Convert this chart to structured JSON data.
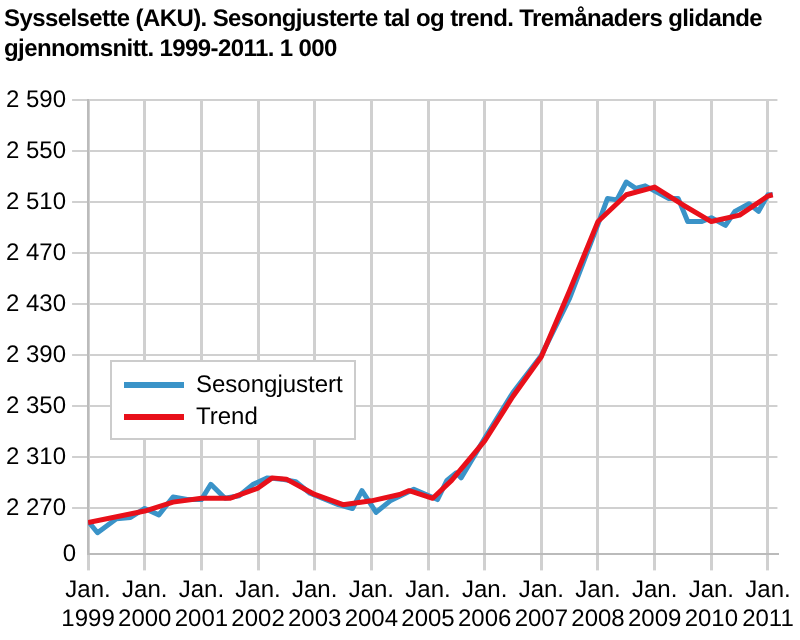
{
  "chart_data": {
    "type": "line",
    "title": "Sysselsette (AKU).  Sesongjusterte tal og trend. Tremånaders glidande gjennomsnitt. 1999-2011. 1 000",
    "series": [
      {
        "name": "Sesongjustert",
        "color": "#3a93c8",
        "x": [
          "1999-01",
          "1999-03",
          "1999-07",
          "1999-10",
          "2000-01",
          "2000-04",
          "2000-07",
          "2000-10",
          "2001-01",
          "2001-03",
          "2001-06",
          "2001-09",
          "2001-12",
          "2002-03",
          "2002-06",
          "2002-09",
          "2002-12",
          "2003-06",
          "2003-09",
          "2003-11",
          "2004-02",
          "2004-05",
          "2004-10",
          "2005-03",
          "2005-05",
          "2005-07",
          "2005-08",
          "2006-01",
          "2006-07",
          "2007-01",
          "2007-07",
          "2008-01",
          "2008-03",
          "2008-05",
          "2008-07",
          "2008-09",
          "2008-11",
          "2009-04",
          "2009-06",
          "2009-08",
          "2009-11",
          "2010-01",
          "2010-04",
          "2010-06",
          "2010-09",
          "2010-11",
          "2011-01",
          "2011-02"
        ],
        "values": [
          2260,
          2251,
          2262,
          2263,
          2270,
          2265,
          2279,
          2277,
          2277,
          2289,
          2278,
          2280,
          2289,
          2294,
          2293,
          2291,
          2282,
          2273,
          2270,
          2284,
          2267,
          2276,
          2285,
          2277,
          2292,
          2298,
          2294,
          2325,
          2361,
          2390,
          2435,
          2493,
          2513,
          2512,
          2526,
          2521,
          2523,
          2513,
          2513,
          2495,
          2495,
          2498,
          2492,
          2503,
          2509,
          2503,
          2516,
          2516
        ]
      },
      {
        "name": "Trend",
        "color": "#e8101a",
        "x": [
          "1999-01",
          "2000-01",
          "2000-07",
          "2001-01",
          "2001-07",
          "2002-01",
          "2002-04",
          "2002-07",
          "2003-01",
          "2003-07",
          "2004-01",
          "2004-07",
          "2004-09",
          "2005-02",
          "2005-06",
          "2006-01",
          "2006-07",
          "2007-01",
          "2007-07",
          "2008-01",
          "2008-07",
          "2009-01",
          "2009-07",
          "2010-01",
          "2010-07",
          "2011-01",
          "2011-02"
        ],
        "values": [
          2259,
          2268,
          2275,
          2278,
          2278,
          2286,
          2294,
          2293,
          2281,
          2273,
          2276,
          2281,
          2284,
          2278,
          2292,
          2323,
          2358,
          2389,
          2441,
          2495,
          2516,
          2522,
          2508,
          2495,
          2500,
          2515,
          2516
        ]
      }
    ],
    "xlim": [
      "1999-01",
      "2011-03"
    ],
    "xticks": [
      {
        "value": "1999-01",
        "label": "Jan. 1999"
      },
      {
        "value": "2000-01",
        "label": "Jan. 2000"
      },
      {
        "value": "2001-01",
        "label": "Jan. 2001"
      },
      {
        "value": "2002-01",
        "label": "Jan. 2002"
      },
      {
        "value": "2003-01",
        "label": "Jan. 2003"
      },
      {
        "value": "2004-01",
        "label": "Jan. 2004"
      },
      {
        "value": "2005-01",
        "label": "Jan. 2005"
      },
      {
        "value": "2006-01",
        "label": "Jan. 2006"
      },
      {
        "value": "2007-01",
        "label": "Jan. 2007"
      },
      {
        "value": "2008-01",
        "label": "Jan. 2008"
      },
      {
        "value": "2009-01",
        "label": "Jan. 2009"
      },
      {
        "value": "2010-01",
        "label": "Jan. 2010"
      },
      {
        "value": "2011-01",
        "label": "Jan. 2011"
      }
    ],
    "ylim": [
      2234,
      2590
    ],
    "annotations": [
      "0"
    ],
    "yticks": [
      {
        "value": 2270,
        "label": "2 270"
      },
      {
        "value": 2310,
        "label": "2 310"
      },
      {
        "value": 2350,
        "label": "2 350"
      },
      {
        "value": 2390,
        "label": "2 390"
      },
      {
        "value": 2430,
        "label": "2 430"
      },
      {
        "value": 2470,
        "label": "2 470"
      },
      {
        "value": 2510,
        "label": "2 510"
      },
      {
        "value": 2550,
        "label": "2 550"
      },
      {
        "value": 2590,
        "label": "2 590"
      }
    ],
    "grid": true,
    "legend": "left",
    "marker": "none",
    "line_style": "solid"
  }
}
